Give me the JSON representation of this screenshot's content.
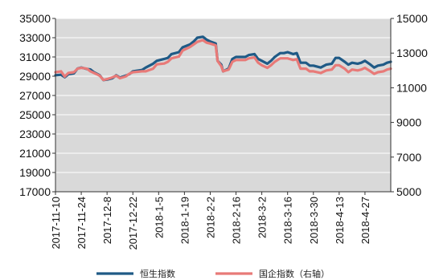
{
  "chart_data": {
    "type": "line",
    "title": "",
    "xlabel": "",
    "ylabel_left": "",
    "ylabel_right": "",
    "y_left": {
      "range": [
        17000,
        35000
      ],
      "ticks": [
        17000,
        19000,
        21000,
        23000,
        25000,
        27000,
        29000,
        31000,
        33000,
        35000
      ]
    },
    "y_right": {
      "range": [
        5000,
        15000
      ],
      "ticks": [
        5000,
        7000,
        9000,
        11000,
        13000,
        15000
      ]
    },
    "x_range": [
      "2017-11-10",
      "2018-05-11"
    ],
    "x_ticks": [
      "2017-11-10",
      "2017-11-24",
      "2017-12-8",
      "2017-12-22",
      "2018-1-5",
      "2018-1-19",
      "2018-2-2",
      "2018-2-16",
      "2018-3-2",
      "2018-3-16",
      "2018-3-30",
      "2018-4-13",
      "2018-4-27"
    ],
    "grid": true,
    "legend_position": "bottom",
    "series": [
      {
        "name": "恒生指数",
        "axis": "left",
        "color": "#1f5a86",
        "points": [
          [
            "2017-11-10",
            29100
          ],
          [
            "2017-11-13",
            29150
          ],
          [
            "2017-11-15",
            28900
          ],
          [
            "2017-11-17",
            29200
          ],
          [
            "2017-11-20",
            29300
          ],
          [
            "2017-11-22",
            29800
          ],
          [
            "2017-11-24",
            29900
          ],
          [
            "2017-11-27",
            29750
          ],
          [
            "2017-11-29",
            29700
          ],
          [
            "2017-12-1",
            29400
          ],
          [
            "2017-12-4",
            29100
          ],
          [
            "2017-12-6",
            28600
          ],
          [
            "2017-12-8",
            28650
          ],
          [
            "2017-12-11",
            28800
          ],
          [
            "2017-12-13",
            29100
          ],
          [
            "2017-12-15",
            28850
          ],
          [
            "2017-12-18",
            29050
          ],
          [
            "2017-12-20",
            29200
          ],
          [
            "2017-12-22",
            29500
          ],
          [
            "2017-12-27",
            29650
          ],
          [
            "2017-12-29",
            29900
          ],
          [
            "2018-1-2",
            30300
          ],
          [
            "2018-1-4",
            30600
          ],
          [
            "2018-1-8",
            30800
          ],
          [
            "2018-1-10",
            30900
          ],
          [
            "2018-1-12",
            31300
          ],
          [
            "2018-1-16",
            31500
          ],
          [
            "2018-1-18",
            32000
          ],
          [
            "2018-1-22",
            32300
          ],
          [
            "2018-1-24",
            32600
          ],
          [
            "2018-1-26",
            33000
          ],
          [
            "2018-1-29",
            33100
          ],
          [
            "2018-1-31",
            32800
          ],
          [
            "2018-2-2",
            32600
          ],
          [
            "2018-2-5",
            32400
          ],
          [
            "2018-2-6",
            30600
          ],
          [
            "2018-2-8",
            30200
          ],
          [
            "2018-2-9",
            29500
          ],
          [
            "2018-2-12",
            29800
          ],
          [
            "2018-2-14",
            30800
          ],
          [
            "2018-2-16",
            31000
          ],
          [
            "2018-2-21",
            31000
          ],
          [
            "2018-2-23",
            31200
          ],
          [
            "2018-2-26",
            31300
          ],
          [
            "2018-2-28",
            30800
          ],
          [
            "2018-3-2",
            30600
          ],
          [
            "2018-3-5",
            30300
          ],
          [
            "2018-3-7",
            30600
          ],
          [
            "2018-3-9",
            31000
          ],
          [
            "2018-3-12",
            31400
          ],
          [
            "2018-3-14",
            31400
          ],
          [
            "2018-3-16",
            31500
          ],
          [
            "2018-3-19",
            31300
          ],
          [
            "2018-3-21",
            31400
          ],
          [
            "2018-3-23",
            30400
          ],
          [
            "2018-3-26",
            30400
          ],
          [
            "2018-3-28",
            30100
          ],
          [
            "2018-3-30",
            30100
          ],
          [
            "2018-4-3",
            29900
          ],
          [
            "2018-4-6",
            30200
          ],
          [
            "2018-4-9",
            30300
          ],
          [
            "2018-4-11",
            30900
          ],
          [
            "2018-4-13",
            30900
          ],
          [
            "2018-4-16",
            30500
          ],
          [
            "2018-4-18",
            30200
          ],
          [
            "2018-4-20",
            30400
          ],
          [
            "2018-4-23",
            30300
          ],
          [
            "2018-4-25",
            30400
          ],
          [
            "2018-4-27",
            30600
          ],
          [
            "2018-4-30",
            30200
          ],
          [
            "2018-5-2",
            29900
          ],
          [
            "2018-5-4",
            30100
          ],
          [
            "2018-5-7",
            30200
          ],
          [
            "2018-5-9",
            30400
          ],
          [
            "2018-5-11",
            30500
          ]
        ]
      },
      {
        "name": "国企指数（右轴）",
        "axis": "right",
        "color": "#e87a78",
        "points": [
          [
            "2017-11-10",
            11900
          ],
          [
            "2017-11-13",
            11950
          ],
          [
            "2017-11-15",
            11650
          ],
          [
            "2017-11-17",
            11850
          ],
          [
            "2017-11-20",
            11900
          ],
          [
            "2017-11-22",
            12100
          ],
          [
            "2017-11-24",
            12150
          ],
          [
            "2017-11-27",
            12100
          ],
          [
            "2017-11-29",
            11950
          ],
          [
            "2017-12-1",
            11850
          ],
          [
            "2017-12-4",
            11700
          ],
          [
            "2017-12-6",
            11450
          ],
          [
            "2017-12-8",
            11500
          ],
          [
            "2017-12-11",
            11600
          ],
          [
            "2017-12-13",
            11700
          ],
          [
            "2017-12-15",
            11550
          ],
          [
            "2017-12-18",
            11650
          ],
          [
            "2017-12-20",
            11800
          ],
          [
            "2017-12-22",
            11900
          ],
          [
            "2017-12-27",
            11950
          ],
          [
            "2017-12-29",
            11950
          ],
          [
            "2018-1-2",
            12100
          ],
          [
            "2018-1-4",
            12350
          ],
          [
            "2018-1-8",
            12400
          ],
          [
            "2018-1-10",
            12500
          ],
          [
            "2018-1-12",
            12700
          ],
          [
            "2018-1-16",
            12800
          ],
          [
            "2018-1-18",
            13150
          ],
          [
            "2018-1-22",
            13350
          ],
          [
            "2018-1-24",
            13500
          ],
          [
            "2018-1-26",
            13650
          ],
          [
            "2018-1-29",
            13750
          ],
          [
            "2018-1-31",
            13600
          ],
          [
            "2018-2-2",
            13550
          ],
          [
            "2018-2-5",
            13450
          ],
          [
            "2018-2-6",
            12550
          ],
          [
            "2018-2-8",
            12250
          ],
          [
            "2018-2-9",
            11950
          ],
          [
            "2018-2-12",
            12050
          ],
          [
            "2018-2-14",
            12500
          ],
          [
            "2018-2-16",
            12600
          ],
          [
            "2018-2-21",
            12600
          ],
          [
            "2018-2-23",
            12700
          ],
          [
            "2018-2-26",
            12750
          ],
          [
            "2018-2-28",
            12450
          ],
          [
            "2018-3-2",
            12300
          ],
          [
            "2018-3-5",
            12150
          ],
          [
            "2018-3-7",
            12300
          ],
          [
            "2018-3-9",
            12500
          ],
          [
            "2018-3-12",
            12700
          ],
          [
            "2018-3-14",
            12700
          ],
          [
            "2018-3-16",
            12700
          ],
          [
            "2018-3-19",
            12600
          ],
          [
            "2018-3-21",
            12650
          ],
          [
            "2018-3-23",
            12100
          ],
          [
            "2018-3-26",
            12100
          ],
          [
            "2018-3-28",
            11950
          ],
          [
            "2018-3-30",
            11950
          ],
          [
            "2018-4-3",
            11850
          ],
          [
            "2018-4-6",
            12000
          ],
          [
            "2018-4-9",
            12050
          ],
          [
            "2018-4-11",
            12300
          ],
          [
            "2018-4-13",
            12300
          ],
          [
            "2018-4-16",
            12100
          ],
          [
            "2018-4-18",
            11900
          ],
          [
            "2018-4-20",
            12050
          ],
          [
            "2018-4-23",
            12000
          ],
          [
            "2018-4-25",
            12050
          ],
          [
            "2018-4-27",
            12150
          ],
          [
            "2018-4-30",
            11950
          ],
          [
            "2018-5-2",
            11800
          ],
          [
            "2018-5-4",
            11900
          ],
          [
            "2018-5-7",
            11950
          ],
          [
            "2018-5-9",
            12050
          ],
          [
            "2018-5-11",
            12100
          ]
        ]
      }
    ]
  }
}
